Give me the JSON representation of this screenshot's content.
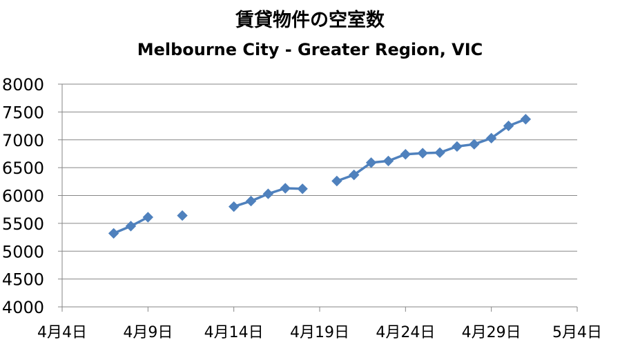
{
  "chart_data": {
    "type": "line",
    "title": "賃貸物件の空室数",
    "subtitle": "Melbourne City - Greater Region, VIC",
    "xlabel": "",
    "ylabel": "",
    "ylim": [
      4000,
      8000
    ],
    "yticks": [
      "8000",
      "7500",
      "7000",
      "6500",
      "6000",
      "5500",
      "5000",
      "4500",
      "4000"
    ],
    "ytick_values": [
      8000,
      7500,
      7000,
      6500,
      6000,
      5500,
      5000,
      4500,
      4000
    ],
    "xlim_days": [
      4,
      34
    ],
    "xticks": [
      "4月4日",
      "4月9日",
      "4月14日",
      "4月19日",
      "4月24日",
      "4月29日",
      "5月4日"
    ],
    "xtick_days": [
      4,
      9,
      14,
      19,
      24,
      29,
      34
    ],
    "grid": true,
    "legend": "none",
    "series_color": "#4F81BD",
    "series": [
      {
        "x": [
          "4月7日",
          "4月8日",
          "4月9日",
          "4月11日",
          "4月14日",
          "4月15日",
          "4月16日",
          "4月17日",
          "4月18日",
          "4月20日",
          "4月21日",
          "4月22日",
          "4月23日",
          "4月24日",
          "4月25日",
          "4月26日",
          "4月27日",
          "4月28日",
          "4月29日",
          "4月30日",
          "5月1日"
        ],
        "x_days": [
          7,
          8,
          9,
          11,
          14,
          15,
          16,
          17,
          18,
          20,
          21,
          22,
          23,
          24,
          25,
          26,
          27,
          28,
          29,
          30,
          31
        ],
        "values": [
          5320,
          5450,
          5610,
          5640,
          5800,
          5900,
          6030,
          6130,
          6120,
          6260,
          6370,
          6590,
          6620,
          6740,
          6760,
          6770,
          6880,
          6920,
          7030,
          7250,
          7370
        ],
        "segments": [
          [
            0,
            1,
            2
          ],
          [
            3
          ],
          [
            4,
            5,
            6,
            7,
            8
          ],
          [
            9,
            10,
            11,
            12,
            13,
            14,
            15,
            16,
            17,
            18,
            19,
            20
          ]
        ]
      }
    ]
  }
}
